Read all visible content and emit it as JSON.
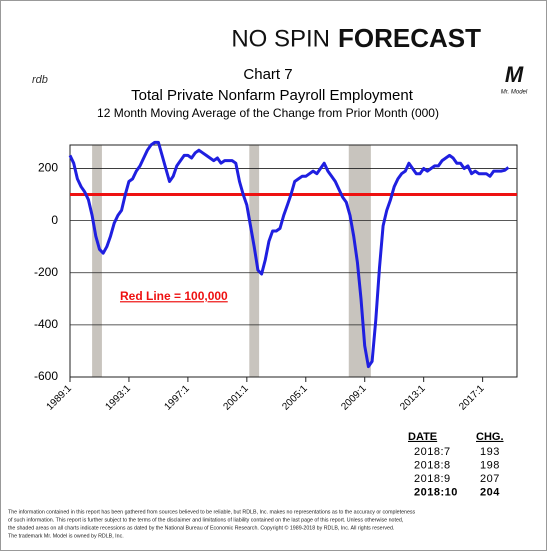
{
  "header": {
    "brand_left": "NO SPIN",
    "brand_right": "FORECAST",
    "logo_left": "rdb",
    "logo_right": "M",
    "logo_right_caption": "Mr. Model"
  },
  "chart_data": {
    "type": "line",
    "title": "Chart 7",
    "subtitle": "Total Private Nonfarm Payroll Employment",
    "note": "12 Month Moving Average of the Change from Prior Month (000)",
    "color": "#1f1fe0",
    "grid": true,
    "x": [
      "1989:1",
      "1989:4",
      "1989:7",
      "1989:10",
      "1990:1",
      "1990:4",
      "1990:7",
      "1990:10",
      "1991:1",
      "1991:4",
      "1991:7",
      "1991:10",
      "1992:1",
      "1992:4",
      "1992:7",
      "1992:10",
      "1993:1",
      "1993:4",
      "1993:7",
      "1993:10",
      "1994:1",
      "1994:4",
      "1994:7",
      "1994:10",
      "1995:1",
      "1995:4",
      "1995:7",
      "1995:10",
      "1996:1",
      "1996:4",
      "1996:7",
      "1996:10",
      "1997:1",
      "1997:4",
      "1997:7",
      "1997:10",
      "1998:1",
      "1998:4",
      "1998:7",
      "1998:10",
      "1999:1",
      "1999:4",
      "1999:7",
      "1999:10",
      "2000:1",
      "2000:4",
      "2000:7",
      "2000:10",
      "2001:1",
      "2001:4",
      "2001:7",
      "2001:10",
      "2002:1",
      "2002:4",
      "2002:7",
      "2002:10",
      "2003:1",
      "2003:4",
      "2003:7",
      "2003:10",
      "2004:1",
      "2004:4",
      "2004:7",
      "2004:10",
      "2005:1",
      "2005:4",
      "2005:7",
      "2005:10",
      "2006:1",
      "2006:4",
      "2006:7",
      "2006:10",
      "2007:1",
      "2007:4",
      "2007:7",
      "2007:10",
      "2008:1",
      "2008:4",
      "2008:7",
      "2008:10",
      "2009:1",
      "2009:4",
      "2009:7",
      "2009:10",
      "2010:1",
      "2010:4",
      "2010:7",
      "2010:10",
      "2011:1",
      "2011:4",
      "2011:7",
      "2011:10",
      "2012:1",
      "2012:4",
      "2012:7",
      "2012:10",
      "2013:1",
      "2013:4",
      "2013:7",
      "2013:10",
      "2014:1",
      "2014:4",
      "2014:7",
      "2014:10",
      "2015:1",
      "2015:4",
      "2015:7",
      "2015:10",
      "2016:1",
      "2016:4",
      "2016:7",
      "2016:10",
      "2017:1",
      "2017:4",
      "2017:7",
      "2017:10",
      "2018:1",
      "2018:4",
      "2018:7",
      "2018:10"
    ],
    "values": [
      250,
      220,
      160,
      130,
      110,
      80,
      20,
      -60,
      -110,
      -125,
      -100,
      -60,
      -10,
      20,
      40,
      100,
      150,
      160,
      190,
      210,
      240,
      270,
      290,
      300,
      300,
      250,
      200,
      150,
      170,
      210,
      230,
      250,
      250,
      240,
      260,
      270,
      260,
      250,
      240,
      230,
      240,
      220,
      230,
      230,
      230,
      220,
      150,
      100,
      60,
      -20,
      -100,
      -190,
      -205,
      -150,
      -80,
      -40,
      -40,
      -30,
      20,
      60,
      100,
      150,
      160,
      170,
      170,
      180,
      190,
      180,
      200,
      220,
      190,
      170,
      150,
      120,
      90,
      70,
      20,
      -60,
      -160,
      -300,
      -480,
      -560,
      -540,
      -380,
      -180,
      -20,
      40,
      80,
      130,
      160,
      180,
      190,
      220,
      200,
      180,
      180,
      200,
      190,
      200,
      210,
      210,
      230,
      240,
      250,
      240,
      220,
      220,
      200,
      210,
      180,
      190,
      180,
      180,
      180,
      170,
      190,
      190,
      190,
      193,
      204
    ],
    "shaded": [
      [
        "1990:7",
        "1991:3"
      ],
      [
        "2001:3",
        "2001:11"
      ],
      [
        "2007:12",
        "2009:6"
      ]
    ],
    "xlim": [
      "1989:1",
      "2019:5"
    ],
    "xticks": [
      "1989:1",
      "1993:1",
      "1997:1",
      "2001:1",
      "2005:1",
      "2009:1",
      "2013:1",
      "2017:1"
    ],
    "ylim": [
      -600,
      290
    ],
    "yticks": [
      -600,
      -400,
      -200,
      0,
      200
    ],
    "reference_line": {
      "value": 100,
      "label": "Red Line = 100,000",
      "color": "#ee1111"
    }
  },
  "table": {
    "columns": [
      "DATE",
      "CHG."
    ],
    "rows": [
      [
        "2018:7",
        193
      ],
      [
        "2018:8",
        198
      ],
      [
        "2018:9",
        207
      ],
      [
        "2018:10",
        204
      ]
    ]
  },
  "footer": [
    "The information contained in this report has been gathered from sources believed to be reliable, but RDLB, Inc. makes no representations as to the accuracy or completeness",
    "of such information. This report is further subject to the terms of the disclaimer and limitations of liability contained on the last page of this report. Unless otherwise noted,",
    "the shaded areas on all charts indicate recessions as dated by the National Bureau of Economic Research. Copyright © 1989-2018 by RDLB, Inc. All rights reserved.",
    "The trademark Mr. Model is owned by RDLB, Inc."
  ]
}
